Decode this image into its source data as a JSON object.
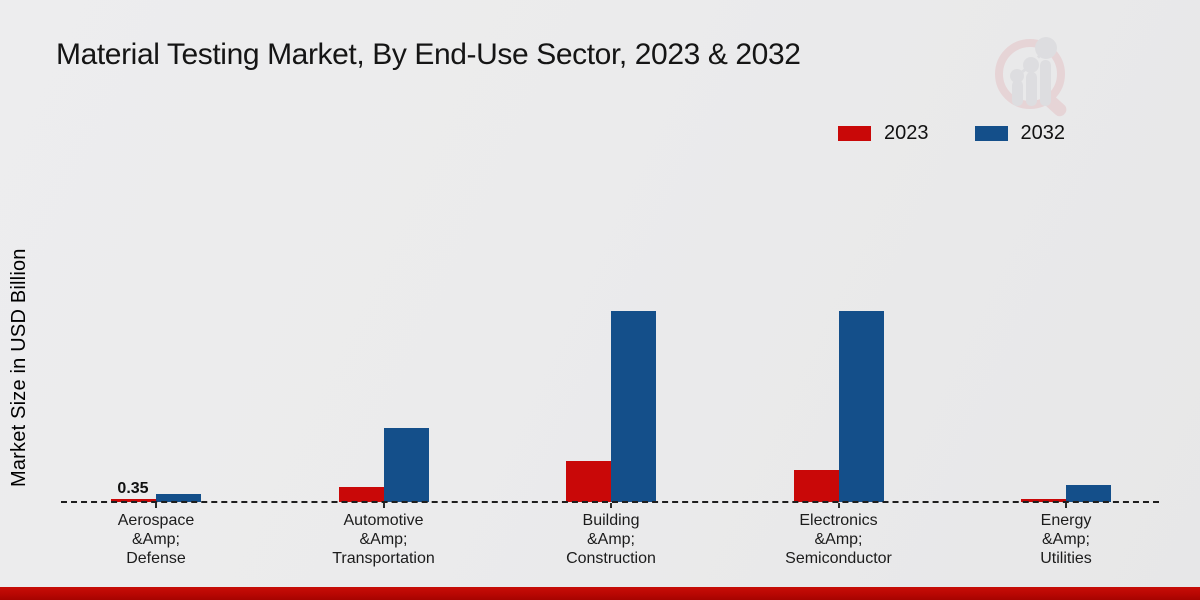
{
  "title": "Material Testing Market, By End-Use Sector, 2023 & 2032",
  "ylabel": "Market Size in USD Billion",
  "legend": {
    "items": [
      {
        "label": "2023",
        "color": "#c90808"
      },
      {
        "label": "2032",
        "color": "#144f8a"
      }
    ]
  },
  "watermark_icon": "magnifier-bar-chart-logo",
  "chart_data": {
    "type": "bar",
    "title": "Material Testing Market, By End-Use Sector, 2023 & 2032",
    "xlabel": "",
    "ylabel": "Market Size in USD Billion",
    "categories": [
      "Aerospace &Amp; Defense",
      "Automotive &Amp; Transportation",
      "Building &Amp; Construction",
      "Electronics &Amp; Semiconductor",
      "Energy &Amp; Utilities"
    ],
    "categories_display": [
      "Aerospace\n&Amp;\nDefense",
      "Automotive\n&Amp;\nTransportation",
      "Building\n&Amp;\nConstruction",
      "Electronics\n&Amp;\nSemiconductor",
      "Energy\n&Amp;\nUtilities"
    ],
    "series": [
      {
        "name": "2023",
        "color": "#c90808",
        "values": [
          0.35,
          2.1,
          5.8,
          4.5,
          0.42
        ]
      },
      {
        "name": "2032",
        "color": "#144f8a",
        "values": [
          1.05,
          10.35,
          26.75,
          26.75,
          2.38
        ]
      }
    ],
    "annotations": [
      {
        "text": "0.35",
        "category_index": 0,
        "series": "2023"
      }
    ],
    "ylim": [
      0,
      42
    ],
    "grid": false,
    "axis_style": "dashed-baseline-only",
    "legend_position": "top-right",
    "accent_colors": {
      "footer_stripe": "#b80703",
      "background": "#ebebec"
    }
  }
}
